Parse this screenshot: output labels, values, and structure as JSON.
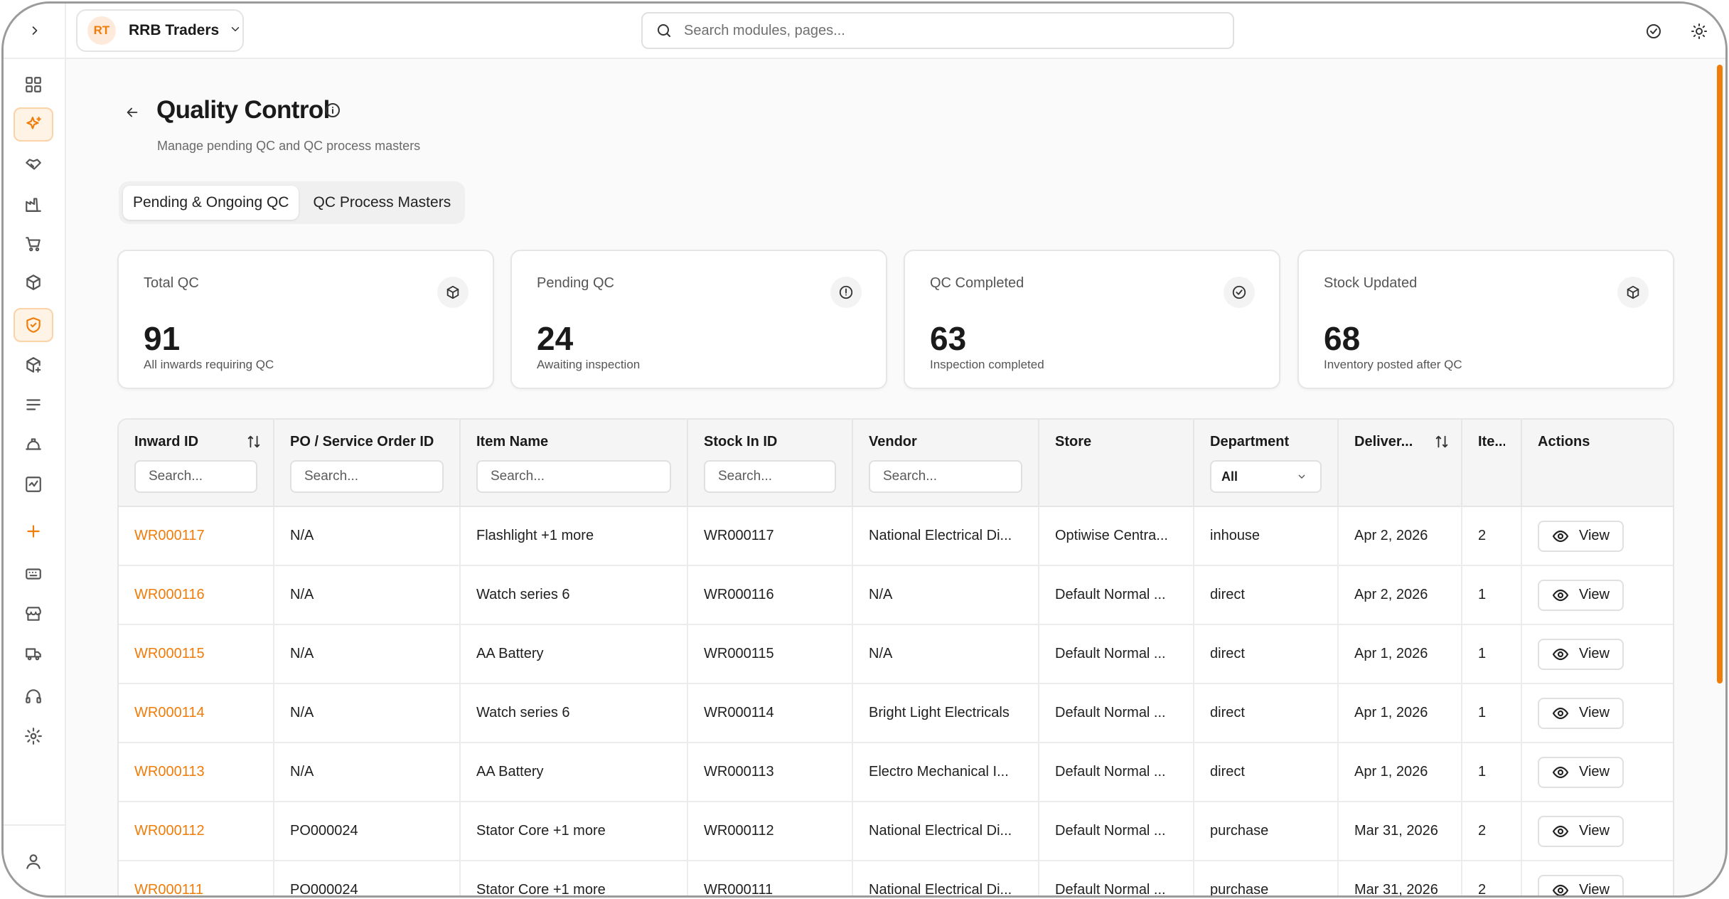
{
  "org": {
    "initials": "RT",
    "name": "RRB Traders"
  },
  "search": {
    "placeholder": "Search modules, pages..."
  },
  "page": {
    "title": "Quality Control",
    "subtitle": "Manage pending QC and QC process masters"
  },
  "tabs": [
    {
      "label": "Pending & Ongoing QC",
      "active": true
    },
    {
      "label": "QC Process Masters",
      "active": false
    }
  ],
  "stats": [
    {
      "label": "Total QC",
      "value": "91",
      "desc": "All inwards requiring QC",
      "icon": "package-icon"
    },
    {
      "label": "Pending QC",
      "value": "24",
      "desc": "Awaiting inspection",
      "icon": "alert-circle-icon"
    },
    {
      "label": "QC Completed",
      "value": "63",
      "desc": "Inspection completed",
      "icon": "check-circle-icon"
    },
    {
      "label": "Stock Updated",
      "value": "68",
      "desc": "Inventory posted after QC",
      "icon": "package-icon"
    }
  ],
  "table": {
    "columns": [
      {
        "label": "Inward ID",
        "filter": "input",
        "placeholder": "Search...",
        "sortable": true
      },
      {
        "label": "PO / Service Order ID",
        "filter": "input",
        "placeholder": "Search..."
      },
      {
        "label": "Item Name",
        "filter": "input",
        "placeholder": "Search..."
      },
      {
        "label": "Stock In ID",
        "filter": "input",
        "placeholder": "Search..."
      },
      {
        "label": "Vendor",
        "filter": "input",
        "placeholder": "Search..."
      },
      {
        "label": "Store"
      },
      {
        "label": "Department",
        "filter": "select",
        "selected": "All"
      },
      {
        "label": "Deliver...",
        "sortable": true
      },
      {
        "label": "Ite..."
      },
      {
        "label": "Actions"
      }
    ],
    "view_label": "View",
    "rows": [
      [
        "WR000117",
        "N/A",
        "Flashlight +1 more",
        "WR000117",
        "National Electrical Di...",
        "Optiwise Centra...",
        "inhouse",
        "Apr 2, 2026",
        "2"
      ],
      [
        "WR000116",
        "N/A",
        "Watch series 6",
        "WR000116",
        "N/A",
        "Default Normal ...",
        "direct",
        "Apr 2, 2026",
        "1"
      ],
      [
        "WR000115",
        "N/A",
        "AA Battery",
        "WR000115",
        "N/A",
        "Default Normal ...",
        "direct",
        "Apr 1, 2026",
        "1"
      ],
      [
        "WR000114",
        "N/A",
        "Watch series 6",
        "WR000114",
        "Bright Light Electricals",
        "Default Normal ...",
        "direct",
        "Apr 1, 2026",
        "1"
      ],
      [
        "WR000113",
        "N/A",
        "AA Battery",
        "WR000113",
        "Electro Mechanical I...",
        "Default Normal ...",
        "direct",
        "Apr 1, 2026",
        "1"
      ],
      [
        "WR000112",
        "PO000024",
        "Stator Core +1 more",
        "WR000112",
        "National Electrical Di...",
        "Default Normal ...",
        "purchase",
        "Mar 31, 2026",
        "2"
      ],
      [
        "WR000111",
        "PO000024",
        "Stator Core +1 more",
        "WR000111",
        "National Electrical Di...",
        "Default Normal ...",
        "purchase",
        "Mar 31, 2026",
        "2"
      ]
    ]
  },
  "colors": {
    "accent": "#f07c0a",
    "accent_soft": "#fff3e6",
    "border": "#e6e6e6"
  }
}
